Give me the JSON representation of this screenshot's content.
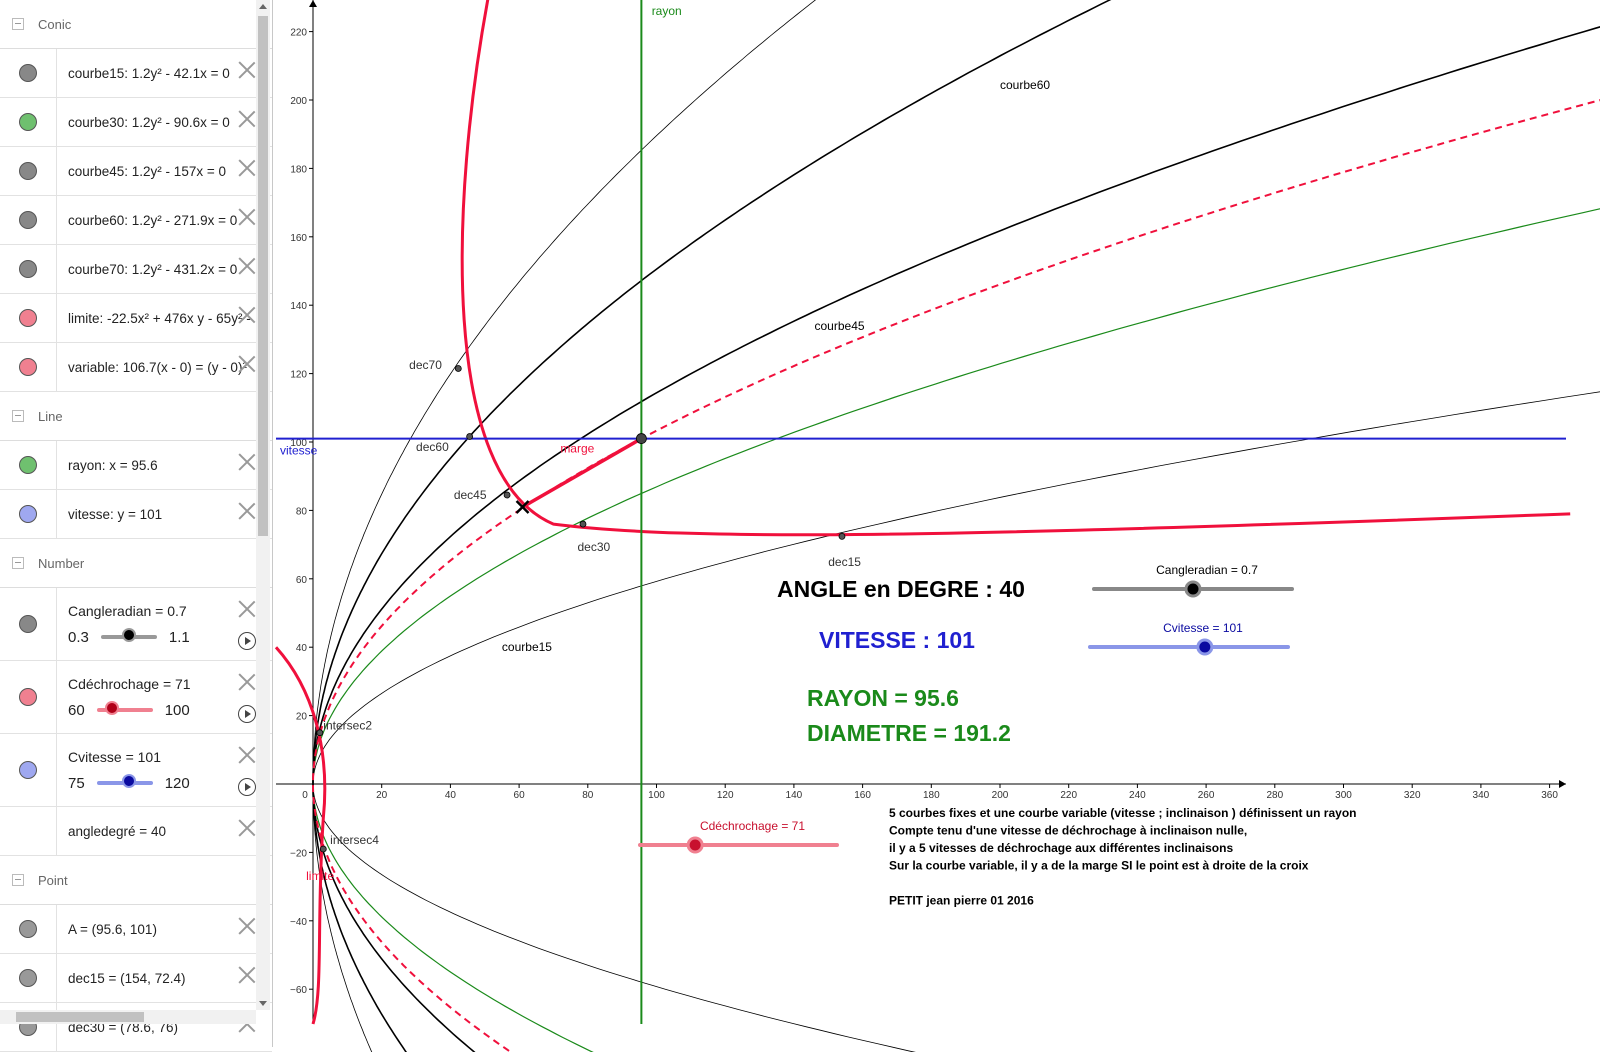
{
  "algebra": {
    "sections": {
      "conic": "Conic",
      "line": "Line",
      "number": "Number",
      "point": "Point"
    },
    "conics": [
      {
        "expr": "courbe15: 1.2y² - 42.1x = 0",
        "color": "#888888"
      },
      {
        "expr": "courbe30: 1.2y² - 90.6x = 0",
        "color": "#6fc06f"
      },
      {
        "expr": "courbe45: 1.2y² - 157x = 0",
        "color": "#888888"
      },
      {
        "expr": "courbe60: 1.2y² - 271.9x = 0",
        "color": "#888888"
      },
      {
        "expr": "courbe70: 1.2y² - 431.2x = 0",
        "color": "#888888"
      },
      {
        "expr": "limite: -22.5x² + 476x y - 65y² -",
        "color": "#f08090"
      },
      {
        "expr": "variable: 106.7(x - 0) = (y - 0)²",
        "color": "#f08090"
      }
    ],
    "lines": [
      {
        "expr": "rayon: x = 95.6",
        "color": "#6fc06f"
      },
      {
        "expr": "vitesse: y = 101",
        "color": "#9fa8f0"
      }
    ],
    "numbers": [
      {
        "label": "Cangleradian = 0.7",
        "min": "0.3",
        "max": "1.1",
        "value": 0.7,
        "minv": 0.3,
        "maxv": 1.1,
        "color": "#888888",
        "track": "#999999",
        "knob": "#000000"
      },
      {
        "label": "Cdéchrochage = 71",
        "min": "60",
        "max": "100",
        "value": 71,
        "minv": 60,
        "maxv": 100,
        "color": "#f08090",
        "track": "#f08090",
        "knob": "#b00018"
      },
      {
        "label": "Cvitesse = 101",
        "min": "75",
        "max": "120",
        "value": 101,
        "minv": 75,
        "maxv": 120,
        "color": "#9fa8f0",
        "track": "#8a96e8",
        "knob": "#0a0aa0"
      }
    ],
    "angledegre": "angledegré = 40",
    "points": [
      {
        "expr": "A = (95.6, 101)",
        "color": "#999999"
      },
      {
        "expr": "dec15 = (154, 72.4)",
        "color": "#999999"
      },
      {
        "expr": "dec30 = (78.6, 76)",
        "color": "#999999"
      }
    ]
  },
  "graph": {
    "xticks": [
      "0",
      "20",
      "40",
      "60",
      "80",
      "100",
      "120",
      "140",
      "160",
      "180",
      "200",
      "220",
      "240",
      "260",
      "280",
      "300",
      "320",
      "340",
      "360"
    ],
    "yticks_pos": [
      "20",
      "40",
      "60",
      "80",
      "100",
      "120",
      "140",
      "160",
      "180",
      "200",
      "220"
    ],
    "yticks_neg": [
      "−20",
      "−40",
      "−60"
    ],
    "labels": {
      "rayon": "rayon",
      "vitesse": "vitesse",
      "marge": "marge",
      "courbe60": "courbe60",
      "courbe45": "courbe45",
      "courbe15": "courbe15",
      "dec70": "dec70",
      "dec60": "dec60",
      "dec45": "dec45",
      "dec30": "dec30",
      "dec15": "dec15",
      "intersec2": "intersec2",
      "intersec4": "intersec4",
      "limite": "limite"
    },
    "big": {
      "angle": "ANGLE en DEGRE : 40",
      "vitesse": "VITESSE : 101",
      "rayon": "RAYON =  95.6",
      "diametre": "DIAMETRE  = 191.2"
    },
    "sliders": {
      "cangle": "Cangleradian = 0.7",
      "cvitesse": "Cvitesse = 101",
      "cdech": "Cdéchrochage = 71"
    },
    "notes": [
      "5 courbes fixes et une courbe  variable (vitesse ; inclinaison )  définissent un rayon",
      "Compte tenu d'une vitesse de déchrochage à inclinaison nulle,",
      "il y a 5 vitesses de déchrochage aux différentes inclinaisons",
      "Sur la courbe variable, il y a de la marge   SI    le point est à droite de la croix",
      "",
      "PETIT jean pierre 01 2016"
    ],
    "colors": {
      "red": "#f0103c",
      "green": "#1a8a1a",
      "blue": "#2020d0",
      "black": "#000000"
    }
  }
}
